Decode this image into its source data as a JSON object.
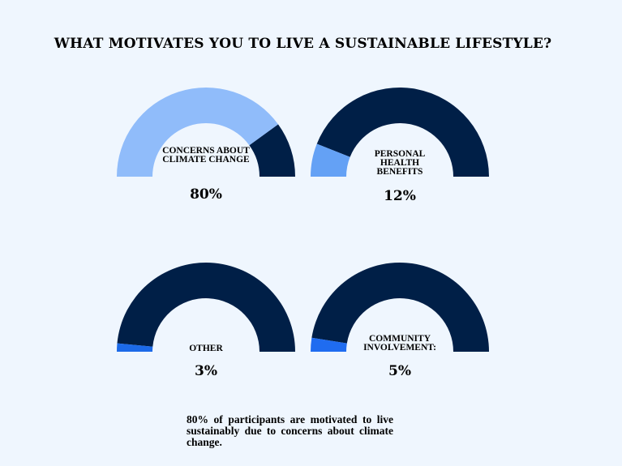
{
  "title": "WHAT MOTIVATES YOU TO LIVE A SUSTAINABLE LIFESTYLE?",
  "caption": "80% of participants are motivated to live sustainably due to concerns about climate change.",
  "colors": {
    "background": "#eff6fe",
    "track": "#001f47"
  },
  "chart_data": [
    {
      "type": "gauge",
      "label": "CONCERNS ABOUT CLIMATE CHANGE",
      "value": 80,
      "value_label": "80%",
      "max": 100,
      "fill_color": "#90bcfa",
      "track_color": "#001f47"
    },
    {
      "type": "gauge",
      "label": "PERSONAL HEALTH BENEFITS",
      "value": 12,
      "value_label": "12%",
      "max": 100,
      "fill_color": "#64a1f5",
      "track_color": "#001f47"
    },
    {
      "type": "gauge",
      "label": "OTHER",
      "value": 3,
      "value_label": "3%",
      "max": 100,
      "fill_color": "#1c6ae8",
      "track_color": "#001f47"
    },
    {
      "type": "gauge",
      "label": "COMMUNITY INVOLVEMENT:",
      "value": 5,
      "value_label": "5%",
      "max": 100,
      "fill_color": "#1f6cf0",
      "track_color": "#001f47"
    }
  ]
}
